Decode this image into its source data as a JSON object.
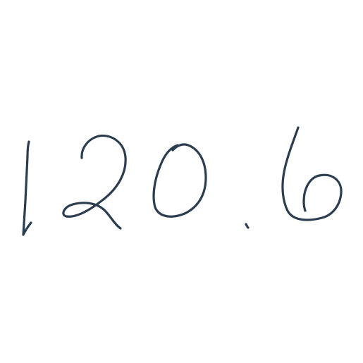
{
  "handwriting": {
    "text": "120.6",
    "ink_color": "#2b3d4f",
    "background_color": "#ffffff",
    "characters": [
      "1",
      "2",
      "0",
      ".",
      "6"
    ]
  }
}
